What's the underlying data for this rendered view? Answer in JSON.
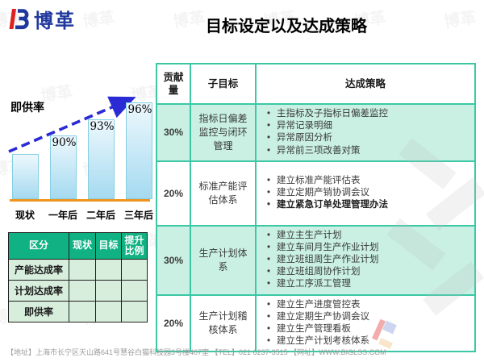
{
  "colors": {
    "accent": "#3cc8a6",
    "mint": "#c9f0e2",
    "green": "#10b183",
    "pale-green": "#d8eedd",
    "bar-top": "#edf8fd",
    "bar-bottom": "#a5daf0",
    "bar-border": "#85cfe2",
    "orange": "#f0941e",
    "arrow-blue": "#2b2bd5",
    "logo-blue": "#20389e",
    "logo-red": "#e02121",
    "footer-gray": "#9b9b9b"
  },
  "logo": {
    "brand": "博革"
  },
  "title": "目标设定以及达成策略",
  "chart": {
    "label": "即供率",
    "categories": [
      "现状",
      "一年后",
      "二年后",
      "三年后"
    ],
    "bar_labels": [
      "",
      "90%",
      "93%",
      "96%"
    ]
  },
  "chart_data": {
    "type": "bar",
    "title": "即供率",
    "categories": [
      "现状",
      "一年后",
      "二年后",
      "三年后"
    ],
    "values": [
      null,
      90,
      93,
      96
    ],
    "annotations": [
      "",
      "90%",
      "93%",
      "96%"
    ],
    "ylabel": "",
    "xlabel": "",
    "trend_arrow": "dashed blue arrow rising left-to-right",
    "note": "current-state bar is unlabeled; bars drawn schematically increasing"
  },
  "summary_table": {
    "headers": [
      "区分",
      "现状",
      "目标",
      "提升比例"
    ],
    "rows": [
      {
        "label": "产能达成率",
        "current": "",
        "target": "",
        "improve": ""
      },
      {
        "label": "计划达成率",
        "current": "",
        "target": "",
        "improve": ""
      },
      {
        "label": "即供率",
        "current": "",
        "target": "",
        "improve": ""
      }
    ]
  },
  "strategy_table": {
    "headers": {
      "contribution": "贡献量",
      "subgoal": "子目标",
      "strategy": "达成策略"
    },
    "rows": [
      {
        "contribution": "30%",
        "subgoal": "指标日偏差监控与闭环管理",
        "strategies": [
          "主指标及子指标日偏差监控",
          "异常记录明细",
          "异常原因分析",
          "异常前三项改善对策"
        ]
      },
      {
        "contribution": "20%",
        "subgoal": "标准产能评估体系",
        "strategies": [
          "建立标准产能评估表",
          "建立定期产销协调会议",
          "建立紧急订单处理管理办法"
        ]
      },
      {
        "contribution": "30%",
        "subgoal": "生产计划体系",
        "strategies": [
          "建立主生产计划",
          "建立车间月生产作业计划",
          "建立班组周生产作业计划",
          "建立班组周协作计划",
          "建立工序派工管理"
        ]
      },
      {
        "contribution": "20%",
        "subgoal": "生产计划稽核体系",
        "strategies": [
          "建立生产进度管控表",
          "建立定期生产协调会议",
          "建立生产管理看板",
          "建立生产计划考核体系"
        ]
      }
    ]
  },
  "footer": {
    "text": "【地址】上海市长宁区天山路641号慧谷白猫科技园3号楼407室 【TEL】021 6237-3515 【网址】WWW.BIGLSS.COM"
  },
  "watermark": {
    "text": "博革"
  }
}
